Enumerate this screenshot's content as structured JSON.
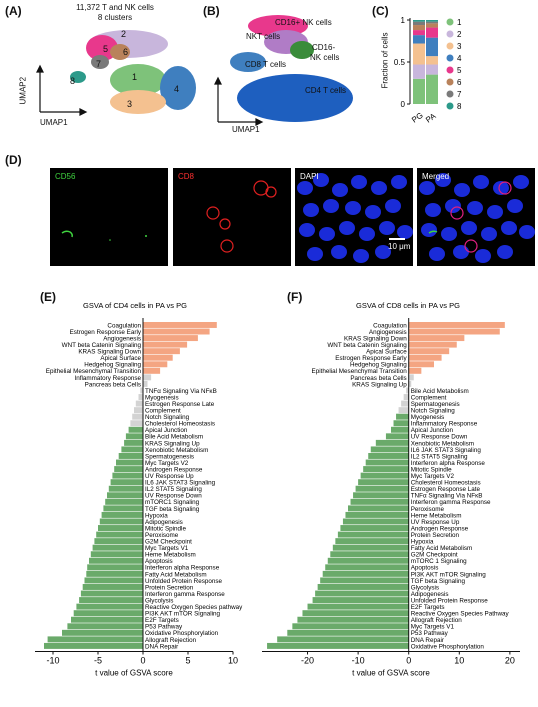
{
  "panel_letters": {
    "a": "(A)",
    "b": "(B)",
    "c": "(C)",
    "d": "(D)",
    "e": "(E)",
    "f": "(F)"
  },
  "panelA": {
    "title_line1": "11,372 T and NK cells",
    "title_line2": "8 clusters",
    "xlabel": "UMAP1",
    "ylabel": "UMAP2",
    "cluster_labels": [
      "1",
      "2",
      "3",
      "4",
      "5",
      "6",
      "7",
      "8"
    ]
  },
  "panelB": {
    "labels": [
      "CD16+ NK cells",
      "NKT cells",
      "CD16-",
      "NK cells",
      "CD8 T cells",
      "CD4 T cells"
    ],
    "xlabel": "UMAP1"
  },
  "panelC": {
    "ylabel": "Fraction of cells",
    "yticks": [
      "1",
      "0.5",
      "0"
    ],
    "groups": [
      "PG",
      "PA"
    ],
    "legend": [
      "1",
      "2",
      "3",
      "4",
      "5",
      "6",
      "7",
      "8"
    ],
    "colors": [
      "#7ec27a",
      "#c8b6dc",
      "#f4c190",
      "#3f7fbf",
      "#e8388c",
      "#b9825b",
      "#7a7a7a",
      "#2c9a8a"
    ]
  },
  "panelD": {
    "labels": [
      "CD56",
      "CD8",
      "DAPI",
      "Merged"
    ],
    "scalebar": "10 μm"
  },
  "chart_data": [
    {
      "type": "bar",
      "orientation": "horizontal",
      "title": "GSVA of CD4 cells in PA vs PG",
      "xlabel": "t value of GSVA score",
      "xlim": [
        -12,
        10
      ],
      "xticks": [
        "-10",
        "-5",
        "0",
        "5",
        "10"
      ],
      "categories": [
        "Coagulation",
        "Estrogen Response Early",
        "Angiogenesis",
        "WNT beta Catenin Signaling",
        "KRAS Signaling Down",
        "Apical Surface",
        "Hedgehog Signaling",
        "Epithelial Mesenchymal Transition",
        "Inflammatory Response",
        "Pancreas beta Cells",
        "TNFα Signaling Via NFκB",
        "Myogenesis",
        "Estrogen Response Late",
        "Complement",
        "Notch Signaling",
        "Cholesterol Homeostasis",
        "Apical Junction",
        "Bile Acid Metabolism",
        "KRAS Signaling Up",
        "Xenobiotic Metabolism",
        "Spermatogenesis",
        "Myc Targets V2",
        "Androgen Response",
        "UV Response Up",
        "IL6 JAK STAT3 Signaling",
        "IL2 STAT5 Signaling",
        "UV Response Down",
        "mTORC1 Signaling",
        "TGF beta Signaling",
        "Hypoxia",
        "Adipogenesis",
        "Mitotic Spindle",
        "Peroxisome",
        "G2M Checkpoint",
        "Myc Targets V1",
        "Heme Metabolism",
        "Apoptosis",
        "Interferon alpha Response",
        "Fatty Acid Metabolism",
        "Unfolded Protein Response",
        "Protein Secretion",
        "Interferon gamma Response",
        "Glycolysis",
        "Reactive Oxygen Species pathway",
        "PI3K AKT mTOR Signaling",
        "E2F Targets",
        "P53 Pathway",
        "Oxidative Phosphorylation",
        "Allograft Rejection",
        "DNA Repair"
      ],
      "values": [
        8.2,
        7.4,
        6.1,
        4.9,
        4.1,
        3.3,
        2.7,
        1.9,
        0.9,
        0.5,
        -0.3,
        -0.5,
        -0.8,
        -1.0,
        -1.2,
        -1.4,
        -1.6,
        -1.9,
        -2.1,
        -2.4,
        -2.7,
        -3.0,
        -3.2,
        -3.4,
        -3.6,
        -3.8,
        -4.0,
        -4.2,
        -4.4,
        -4.6,
        -4.8,
        -5.0,
        -5.2,
        -5.4,
        -5.6,
        -5.8,
        -6.0,
        -6.2,
        -6.3,
        -6.5,
        -6.7,
        -6.9,
        -7.1,
        -7.4,
        -7.7,
        -8.0,
        -8.4,
        -9.0,
        -10.6,
        -11.0
      ],
      "colors": {
        "positive": "#f4a582",
        "neutral": "#d3d3d3",
        "negative": "#6aaa6a"
      }
    },
    {
      "type": "bar",
      "orientation": "horizontal",
      "title": "GSVA of CD8 cells in PA vs PG",
      "xlabel": "t value of GSVA score",
      "xlim": [
        -29,
        22
      ],
      "xticks": [
        "-20",
        "-10",
        "0",
        "10",
        "20"
      ],
      "categories": [
        "Coagulation",
        "Angiogenesis",
        "KRAS Signaling Down",
        "WNT beta Catenin Signaling",
        "Apical Surface",
        "Estrogen Response Early",
        "Hedgehog Signaling",
        "Epithelial Mesenchymal Transition",
        "Pancreas beta Cells",
        "KRAS Signaling Up",
        "Bile Acid Metabolism",
        "Complement",
        "Spermatogenesis",
        "Notch Signaling",
        "Myogenesis",
        "Inflammatory Response",
        "Apical Junction",
        "UV Response Down",
        "Xenobiotic Metabolism",
        "IL6 JAK STAT3 Signaling",
        "IL2 STAT5 Signaling",
        "Interferon alpha Response",
        "Mitotic Spindle",
        "Myc Targets V2",
        "Cholesterol Homeostasis",
        "Estrogen Response Late",
        "TNFα Signaling Via NFκB",
        "Interferon gamma Response",
        "Peroxisome",
        "Heme Metabolism",
        "UV Response Up",
        "Androgen Response",
        "Protein Secretion",
        "Hypoxia",
        "Fatty Acid Metabolism",
        "G2M Checkpoint",
        "mTORC 1 Signaling",
        "Apoptosis",
        "PI3K AKT mTOR Signaling",
        "TGF beta Signaling",
        "Glycolysis",
        "Adipogenesis",
        "Unfolded Protein Response",
        "E2F Targets",
        "Reactive Oxygen Species Pathway",
        "Allograft Rejection",
        "Myc Targets V1",
        "P53 Pathway",
        "DNA Repair",
        "Oxidative Phosphorylation"
      ],
      "values": [
        19.0,
        18.0,
        11.0,
        9.5,
        8.0,
        6.5,
        5.0,
        2.5,
        1.0,
        0.5,
        -0.5,
        -1.0,
        -1.5,
        -2.0,
        -2.5,
        -3.0,
        -3.5,
        -4.5,
        -6.5,
        -7.5,
        -8.0,
        -8.5,
        -9.0,
        -9.5,
        -10.0,
        -10.5,
        -11.0,
        -11.5,
        -12.0,
        -12.5,
        -13.0,
        -13.5,
        -14.0,
        -14.5,
        -15.0,
        -15.5,
        -16.0,
        -16.5,
        -17.0,
        -17.5,
        -18.0,
        -18.5,
        -19.0,
        -20.0,
        -21.0,
        -22.0,
        -23.0,
        -24.0,
        -26.0,
        -28.0
      ],
      "colors": {
        "positive": "#f4a582",
        "neutral": "#d3d3d3",
        "negative": "#6aaa6a"
      }
    }
  ]
}
